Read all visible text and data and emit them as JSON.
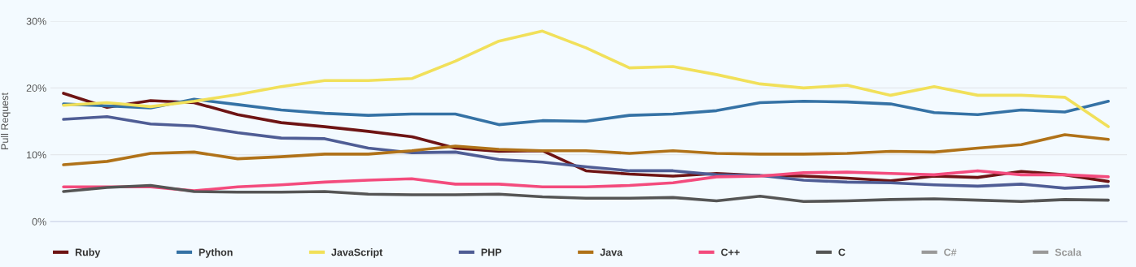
{
  "chart_data": {
    "type": "line",
    "ylabel": "Pull Request",
    "categories": [
      null,
      null,
      null,
      null,
      null,
      null,
      null,
      null,
      null,
      null,
      null,
      null,
      null,
      null,
      null,
      null,
      null,
      null,
      null,
      null,
      null,
      null,
      null,
      null,
      null
    ],
    "ylim": [
      0,
      30
    ],
    "yticks": [
      {
        "value": 0,
        "label": "0%"
      },
      {
        "value": 10,
        "label": "10%"
      },
      {
        "value": 20,
        "label": "20%"
      },
      {
        "value": 30,
        "label": "30%"
      }
    ],
    "tick_labels": "y",
    "grid": "y",
    "legend": "bottom",
    "marker": "none",
    "line_style": "solid",
    "series": [
      {
        "name": "Ruby",
        "color": "#6e1414",
        "values": [
          19.2,
          17.1,
          18.1,
          17.8,
          16.0,
          14.8,
          14.2,
          13.5,
          12.7,
          11.0,
          10.5,
          10.6,
          7.6,
          7.1,
          6.8,
          7.2,
          6.9,
          6.8,
          6.5,
          6.1,
          6.8,
          6.6,
          7.5,
          7.0,
          6.0
        ]
      },
      {
        "name": "Python",
        "color": "#3572a5",
        "values": [
          17.6,
          17.3,
          17.0,
          18.3,
          17.5,
          16.7,
          16.2,
          15.9,
          16.1,
          16.1,
          14.5,
          15.1,
          15.0,
          15.9,
          16.1,
          16.6,
          17.8,
          18.0,
          17.9,
          17.6,
          16.3,
          16.0,
          16.7,
          16.4,
          18.0
        ]
      },
      {
        "name": "JavaScript",
        "color": "#f1e05a",
        "values": [
          17.4,
          17.8,
          17.2,
          18.0,
          19.0,
          20.2,
          21.1,
          21.1,
          21.4,
          24.0,
          27.0,
          28.5,
          26.0,
          23.0,
          23.2,
          22.0,
          20.6,
          20.0,
          20.4,
          18.9,
          20.2,
          18.9,
          18.9,
          18.6,
          14.2
        ]
      },
      {
        "name": "PHP",
        "color": "#4f5d95",
        "values": [
          15.3,
          15.7,
          14.6,
          14.3,
          13.3,
          12.5,
          12.4,
          11.0,
          10.3,
          10.4,
          9.3,
          8.9,
          8.2,
          7.6,
          7.6,
          7.0,
          6.9,
          6.2,
          5.9,
          5.8,
          5.5,
          5.3,
          5.6,
          5.0,
          5.3
        ]
      },
      {
        "name": "Java",
        "color": "#b07219",
        "values": [
          8.5,
          9.0,
          10.2,
          10.4,
          9.4,
          9.7,
          10.1,
          10.1,
          10.6,
          11.3,
          10.8,
          10.6,
          10.6,
          10.2,
          10.6,
          10.2,
          10.1,
          10.1,
          10.2,
          10.5,
          10.4,
          11.0,
          11.5,
          13.0,
          12.3
        ]
      },
      {
        "name": "C++",
        "color": "#f34b7d",
        "values": [
          5.2,
          5.2,
          5.2,
          4.6,
          5.2,
          5.5,
          5.9,
          6.2,
          6.4,
          5.6,
          5.6,
          5.2,
          5.2,
          5.4,
          5.8,
          6.7,
          6.8,
          7.3,
          7.4,
          7.2,
          7.0,
          7.6,
          7.0,
          7.0,
          6.7
        ]
      },
      {
        "name": "C",
        "color": "#555555",
        "values": [
          4.5,
          5.1,
          5.4,
          4.5,
          4.4,
          4.4,
          4.5,
          4.1,
          4.0,
          4.0,
          4.1,
          3.7,
          3.5,
          3.5,
          3.6,
          3.1,
          3.8,
          3.0,
          3.1,
          3.3,
          3.4,
          3.2,
          3.0,
          3.3,
          3.2
        ]
      },
      {
        "name": "C#",
        "color": "#999999",
        "values": [
          null,
          null,
          null,
          null,
          null,
          null,
          null,
          null,
          null,
          null,
          null,
          null,
          null,
          null,
          null,
          null,
          null,
          null,
          null,
          null,
          null,
          null,
          null,
          null,
          null
        ]
      },
      {
        "name": "Scala",
        "color": "#999999",
        "values": [
          null,
          null,
          null,
          null,
          null,
          null,
          null,
          null,
          null,
          null,
          null,
          null,
          null,
          null,
          null,
          null,
          null,
          null,
          null,
          null,
          null,
          null,
          null,
          null,
          null
        ]
      }
    ]
  }
}
